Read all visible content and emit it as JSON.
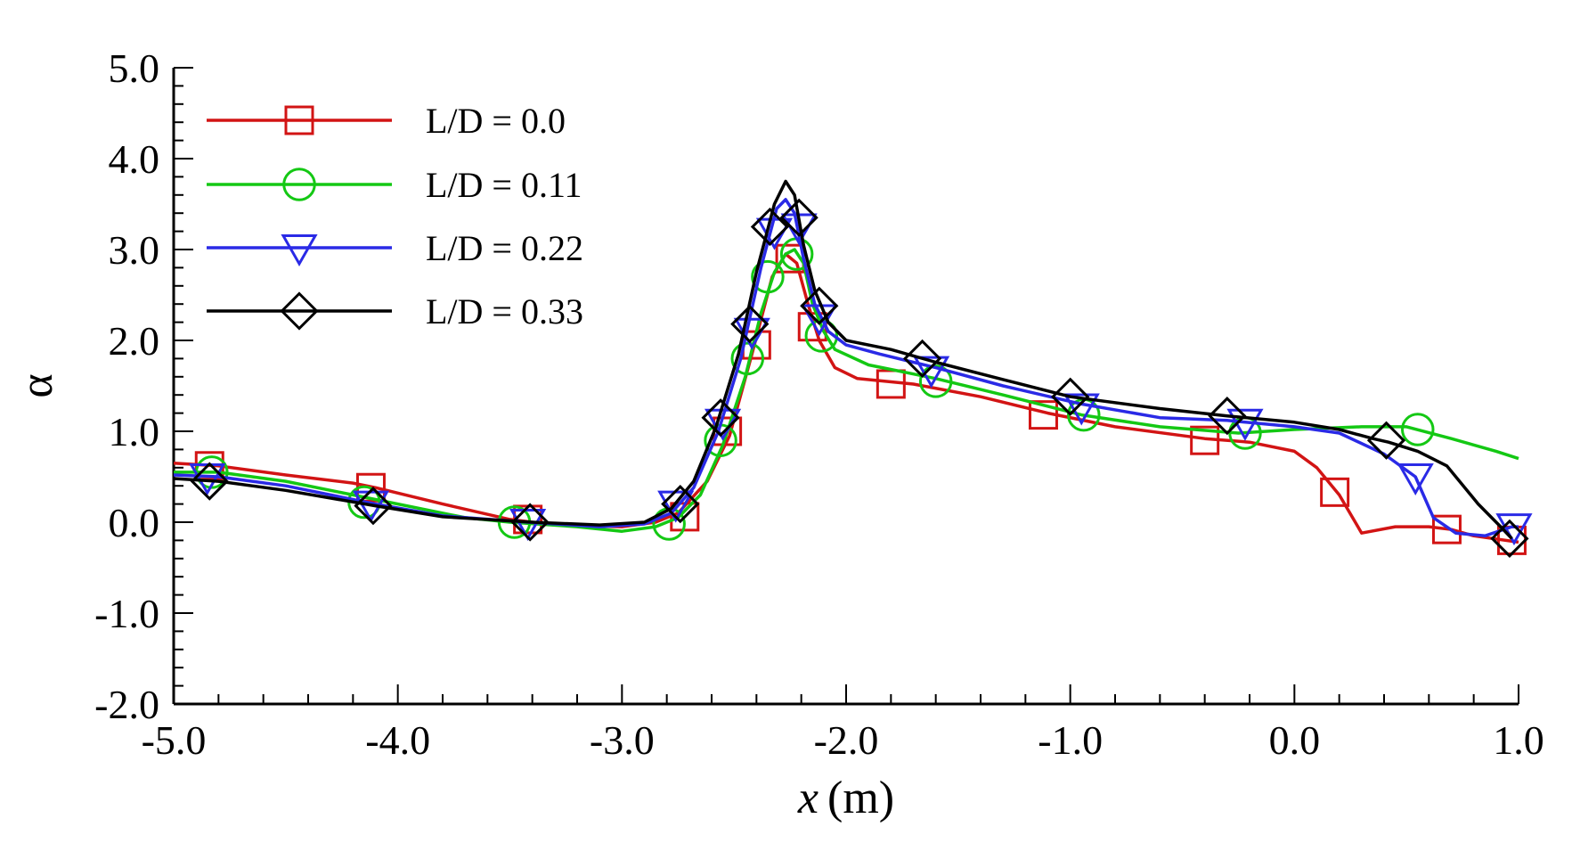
{
  "chart_data": {
    "type": "line",
    "title": "",
    "xlabel": "x",
    "xlabel_unit": "(m)",
    "ylabel": "α",
    "xlim": [
      -5.0,
      1.0
    ],
    "ylim": [
      -2.0,
      5.0
    ],
    "x_ticks": [
      -5.0,
      -4.0,
      -3.0,
      -2.0,
      -1.0,
      0.0,
      1.0
    ],
    "y_ticks": [
      -2.0,
      -1.0,
      0.0,
      1.0,
      2.0,
      3.0,
      4.0,
      5.0
    ],
    "x_tick_labels": [
      "-5.0",
      "-4.0",
      "-3.0",
      "-2.0",
      "-1.0",
      "0.0",
      "1.0"
    ],
    "y_tick_labels": [
      "-2.0",
      "-1.0",
      "0.0",
      "1.0",
      "2.0",
      "3.0",
      "4.0",
      "5.0"
    ],
    "grid": false,
    "legend_position": "top-left",
    "series": [
      {
        "name": "L/D = 0.0",
        "color": "#d21414",
        "marker": "square",
        "line": [
          [
            -5.0,
            0.65
          ],
          [
            -4.8,
            0.62
          ],
          [
            -4.5,
            0.52
          ],
          [
            -4.2,
            0.43
          ],
          [
            -4.1,
            0.38
          ],
          [
            -3.8,
            0.2
          ],
          [
            -3.5,
            0.03
          ],
          [
            -3.3,
            -0.03
          ],
          [
            -3.0,
            -0.05
          ],
          [
            -2.85,
            0.0
          ],
          [
            -2.75,
            0.1
          ],
          [
            -2.62,
            0.45
          ],
          [
            -2.52,
            0.95
          ],
          [
            -2.42,
            1.85
          ],
          [
            -2.33,
            2.7
          ],
          [
            -2.27,
            2.95
          ],
          [
            -2.22,
            2.85
          ],
          [
            -2.17,
            2.4
          ],
          [
            -2.12,
            2.0
          ],
          [
            -2.05,
            1.7
          ],
          [
            -1.95,
            1.58
          ],
          [
            -1.7,
            1.52
          ],
          [
            -1.4,
            1.38
          ],
          [
            -1.1,
            1.2
          ],
          [
            -0.8,
            1.05
          ],
          [
            -0.4,
            0.92
          ],
          [
            -0.2,
            0.88
          ],
          [
            0.0,
            0.78
          ],
          [
            0.1,
            0.6
          ],
          [
            0.2,
            0.3
          ],
          [
            0.3,
            -0.12
          ],
          [
            0.45,
            -0.05
          ],
          [
            0.6,
            -0.05
          ],
          [
            0.7,
            -0.08
          ],
          [
            0.8,
            -0.15
          ],
          [
            1.0,
            -0.22
          ]
        ],
        "markers": [
          [
            -4.84,
            0.62
          ],
          [
            -4.12,
            0.38
          ],
          [
            -3.42,
            0.03
          ],
          [
            -2.72,
            0.06
          ],
          [
            -2.53,
            1.0
          ],
          [
            -2.4,
            1.95
          ],
          [
            -2.25,
            2.9
          ],
          [
            -2.15,
            2.15
          ],
          [
            -1.8,
            1.52
          ],
          [
            -1.12,
            1.18
          ],
          [
            -0.4,
            0.9
          ],
          [
            0.18,
            0.33
          ],
          [
            0.68,
            -0.08
          ],
          [
            0.97,
            -0.2
          ]
        ]
      },
      {
        "name": "L/D = 0.11",
        "color": "#14c814",
        "marker": "circle",
        "line": [
          [
            -5.0,
            0.55
          ],
          [
            -4.8,
            0.55
          ],
          [
            -4.5,
            0.45
          ],
          [
            -4.2,
            0.3
          ],
          [
            -4.0,
            0.2
          ],
          [
            -3.7,
            0.05
          ],
          [
            -3.5,
            0.0
          ],
          [
            -3.2,
            -0.05
          ],
          [
            -3.0,
            -0.1
          ],
          [
            -2.85,
            -0.05
          ],
          [
            -2.75,
            0.05
          ],
          [
            -2.65,
            0.3
          ],
          [
            -2.55,
            0.85
          ],
          [
            -2.45,
            1.6
          ],
          [
            -2.38,
            2.3
          ],
          [
            -2.32,
            2.75
          ],
          [
            -2.27,
            2.95
          ],
          [
            -2.23,
            3.0
          ],
          [
            -2.19,
            2.85
          ],
          [
            -2.15,
            2.4
          ],
          [
            -2.1,
            2.1
          ],
          [
            -2.05,
            1.9
          ],
          [
            -1.9,
            1.73
          ],
          [
            -1.6,
            1.58
          ],
          [
            -1.3,
            1.4
          ],
          [
            -0.95,
            1.18
          ],
          [
            -0.6,
            1.05
          ],
          [
            -0.25,
            0.98
          ],
          [
            0.0,
            1.02
          ],
          [
            0.3,
            1.05
          ],
          [
            0.5,
            1.05
          ],
          [
            0.7,
            0.92
          ],
          [
            0.9,
            0.78
          ],
          [
            1.0,
            0.7
          ]
        ],
        "markers": [
          [
            -4.83,
            0.55
          ],
          [
            -4.15,
            0.22
          ],
          [
            -3.48,
            0.0
          ],
          [
            -2.79,
            -0.02
          ],
          [
            -2.56,
            0.9
          ],
          [
            -2.44,
            1.8
          ],
          [
            -2.35,
            2.7
          ],
          [
            -2.22,
            2.95
          ],
          [
            -2.11,
            2.05
          ],
          [
            -1.6,
            1.55
          ],
          [
            -0.94,
            1.18
          ],
          [
            -0.22,
            0.98
          ],
          [
            0.55,
            1.02
          ]
        ]
      },
      {
        "name": "L/D = 0.22",
        "color": "#2a2ae6",
        "marker": "triangle-down",
        "line": [
          [
            -5.0,
            0.52
          ],
          [
            -4.8,
            0.5
          ],
          [
            -4.5,
            0.4
          ],
          [
            -4.1,
            0.2
          ],
          [
            -3.8,
            0.07
          ],
          [
            -3.42,
            0.0
          ],
          [
            -3.1,
            -0.05
          ],
          [
            -2.9,
            -0.02
          ],
          [
            -2.78,
            0.1
          ],
          [
            -2.68,
            0.38
          ],
          [
            -2.57,
            1.0
          ],
          [
            -2.47,
            1.8
          ],
          [
            -2.38,
            2.8
          ],
          [
            -2.31,
            3.45
          ],
          [
            -2.27,
            3.55
          ],
          [
            -2.23,
            3.4
          ],
          [
            -2.19,
            2.9
          ],
          [
            -2.14,
            2.4
          ],
          [
            -2.08,
            2.1
          ],
          [
            -2.0,
            1.95
          ],
          [
            -1.85,
            1.85
          ],
          [
            -1.6,
            1.7
          ],
          [
            -1.3,
            1.5
          ],
          [
            -0.95,
            1.3
          ],
          [
            -0.6,
            1.15
          ],
          [
            -0.3,
            1.12
          ],
          [
            0.0,
            1.05
          ],
          [
            0.2,
            0.98
          ],
          [
            0.4,
            0.75
          ],
          [
            0.54,
            0.5
          ],
          [
            0.62,
            0.05
          ],
          [
            0.72,
            -0.12
          ],
          [
            0.85,
            -0.15
          ],
          [
            0.97,
            -0.05
          ],
          [
            1.0,
            -0.05
          ]
        ],
        "markers": [
          [
            -4.85,
            0.5
          ],
          [
            -4.12,
            0.2
          ],
          [
            -3.42,
            0.0
          ],
          [
            -2.76,
            0.2
          ],
          [
            -2.55,
            1.1
          ],
          [
            -2.42,
            2.1
          ],
          [
            -2.32,
            3.2
          ],
          [
            -2.21,
            3.25
          ],
          [
            -2.12,
            2.25
          ],
          [
            -1.62,
            1.68
          ],
          [
            -0.95,
            1.27
          ],
          [
            -0.22,
            1.1
          ],
          [
            0.54,
            0.5
          ],
          [
            0.98,
            -0.05
          ]
        ]
      },
      {
        "name": "L/D = 0.33",
        "color": "#000000",
        "marker": "diamond",
        "line": [
          [
            -5.0,
            0.48
          ],
          [
            -4.8,
            0.45
          ],
          [
            -4.5,
            0.35
          ],
          [
            -4.1,
            0.18
          ],
          [
            -3.8,
            0.06
          ],
          [
            -3.4,
            0.0
          ],
          [
            -3.1,
            -0.03
          ],
          [
            -2.9,
            0.0
          ],
          [
            -2.78,
            0.15
          ],
          [
            -2.68,
            0.45
          ],
          [
            -2.58,
            1.05
          ],
          [
            -2.48,
            1.85
          ],
          [
            -2.4,
            2.75
          ],
          [
            -2.32,
            3.5
          ],
          [
            -2.27,
            3.75
          ],
          [
            -2.23,
            3.6
          ],
          [
            -2.19,
            3.05
          ],
          [
            -2.14,
            2.55
          ],
          [
            -2.08,
            2.2
          ],
          [
            -2.0,
            2.0
          ],
          [
            -1.8,
            1.9
          ],
          [
            -1.6,
            1.76
          ],
          [
            -1.3,
            1.57
          ],
          [
            -1.0,
            1.38
          ],
          [
            -0.6,
            1.25
          ],
          [
            -0.3,
            1.17
          ],
          [
            0.0,
            1.1
          ],
          [
            0.2,
            1.02
          ],
          [
            0.35,
            0.92
          ],
          [
            0.42,
            0.88
          ],
          [
            0.55,
            0.78
          ],
          [
            0.68,
            0.62
          ],
          [
            0.82,
            0.2
          ],
          [
            0.92,
            -0.05
          ],
          [
            0.97,
            -0.18
          ]
        ],
        "markers": [
          [
            -4.84,
            0.45
          ],
          [
            -4.11,
            0.18
          ],
          [
            -3.41,
            0.0
          ],
          [
            -2.74,
            0.2
          ],
          [
            -2.56,
            1.15
          ],
          [
            -2.43,
            2.18
          ],
          [
            -2.34,
            3.25
          ],
          [
            -2.21,
            3.35
          ],
          [
            -2.12,
            2.38
          ],
          [
            -1.66,
            1.8
          ],
          [
            -1.0,
            1.38
          ],
          [
            -0.3,
            1.17
          ],
          [
            0.41,
            0.9
          ],
          [
            0.96,
            -0.18
          ]
        ]
      }
    ]
  }
}
